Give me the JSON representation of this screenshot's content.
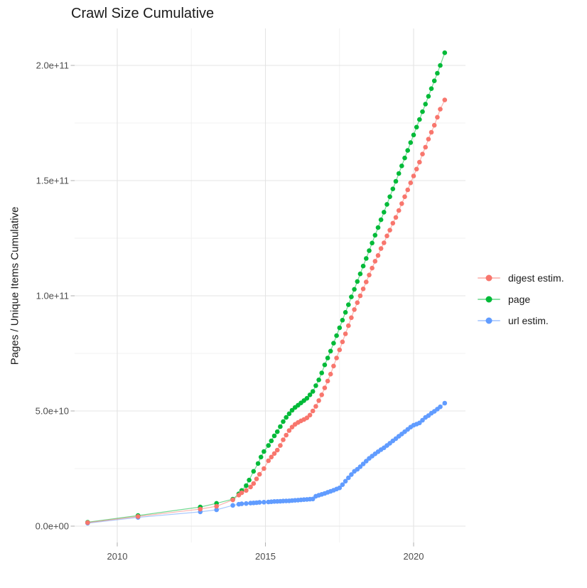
{
  "page": {
    "background": "#ffffff"
  },
  "colors": {
    "grid_major": "#e4e4e4",
    "grid_minor": "#f1f1f1",
    "axis_tick": "#b3b3b3",
    "tick_label": "#4d4d4d",
    "text": "#1a1a1a"
  },
  "chart_data": {
    "type": "line",
    "title": "Crawl Size Cumulative",
    "xlabel": "",
    "ylabel": "Pages / Unique Items Cumulative",
    "legend_position": "right",
    "grid": true,
    "point_style": "dots connected by thin lines",
    "x_ticks": [
      2010,
      2015,
      2020
    ],
    "x_tick_labels": [
      "2010",
      "2015",
      "2020"
    ],
    "x_minor_ticks": [
      2012.5,
      2017.5
    ],
    "xlim": [
      2008.56,
      2021.75
    ],
    "y_unit": "value_in_billions_1e9",
    "y_ticks_e9": [
      0,
      50,
      100,
      150,
      200
    ],
    "y_tick_labels": [
      "0.0e+00",
      "5.0e+10",
      "1.0e+11",
      "1.5e+11",
      "2.0e+11"
    ],
    "y_minor_ticks_e9": [
      25,
      75,
      125,
      175
    ],
    "ylim_e9": [
      -7,
      216
    ],
    "draw_order": [
      "url estim.",
      "page",
      "digest estim."
    ],
    "series": [
      {
        "name": "digest estim.",
        "color": "#F8766D",
        "points": [
          [
            2009.0,
            1.5
          ],
          [
            2010.7,
            4.2
          ],
          [
            2012.8,
            7.4
          ],
          [
            2013.35,
            8.6
          ],
          [
            2013.9,
            11.4
          ],
          [
            2014.1,
            13.5
          ],
          [
            2014.2,
            14.5
          ],
          [
            2014.35,
            15.5
          ],
          [
            2014.5,
            17.0
          ],
          [
            2014.6,
            18.5
          ],
          [
            2014.7,
            20.5
          ],
          [
            2014.8,
            22.5
          ],
          [
            2014.95,
            25.0
          ],
          [
            2015.1,
            28.4
          ],
          [
            2015.2,
            30.0
          ],
          [
            2015.3,
            31.5
          ],
          [
            2015.4,
            33.0
          ],
          [
            2015.5,
            35.0
          ],
          [
            2015.6,
            37.5
          ],
          [
            2015.7,
            39.5
          ],
          [
            2015.8,
            41.5
          ],
          [
            2015.9,
            43.0
          ],
          [
            2016.0,
            44.2
          ],
          [
            2016.1,
            45.0
          ],
          [
            2016.2,
            45.7
          ],
          [
            2016.3,
            46.3
          ],
          [
            2016.4,
            47.0
          ],
          [
            2016.5,
            48.2
          ],
          [
            2016.6,
            50.0
          ],
          [
            2016.7,
            52.0
          ],
          [
            2016.8,
            54.5
          ],
          [
            2016.9,
            57.0
          ],
          [
            2017.0,
            60.0
          ],
          [
            2017.1,
            63.0
          ],
          [
            2017.2,
            66.0
          ],
          [
            2017.3,
            69.5
          ],
          [
            2017.4,
            73.0
          ],
          [
            2017.5,
            76.5
          ],
          [
            2017.6,
            80.0
          ],
          [
            2017.7,
            83.5
          ],
          [
            2017.8,
            87.0
          ],
          [
            2017.9,
            90.5
          ],
          [
            2018.0,
            94.0
          ],
          [
            2018.1,
            97.0
          ],
          [
            2018.2,
            100.0
          ],
          [
            2018.3,
            103.0
          ],
          [
            2018.4,
            106.0
          ],
          [
            2018.5,
            109.0
          ],
          [
            2018.6,
            112.0
          ],
          [
            2018.7,
            115.0
          ],
          [
            2018.8,
            117.5
          ],
          [
            2018.9,
            120.5
          ],
          [
            2019.0,
            123.0
          ],
          [
            2019.1,
            126.0
          ],
          [
            2019.2,
            128.5
          ],
          [
            2019.3,
            131.5
          ],
          [
            2019.4,
            134.0
          ],
          [
            2019.5,
            137.0
          ],
          [
            2019.6,
            140.0
          ],
          [
            2019.7,
            143.0
          ],
          [
            2019.8,
            146.0
          ],
          [
            2019.9,
            149.0
          ],
          [
            2020.0,
            152.0
          ],
          [
            2020.1,
            155.0
          ],
          [
            2020.2,
            158.0
          ],
          [
            2020.3,
            161.5
          ],
          [
            2020.4,
            164.5
          ],
          [
            2020.5,
            168.0
          ],
          [
            2020.6,
            171.0
          ],
          [
            2020.7,
            174.0
          ],
          [
            2020.8,
            177.5
          ],
          [
            2020.9,
            181.0
          ],
          [
            2021.05,
            185.0
          ]
        ]
      },
      {
        "name": "page",
        "color": "#00BA38",
        "points": [
          [
            2009.0,
            1.7
          ],
          [
            2010.7,
            4.6
          ],
          [
            2012.8,
            8.3
          ],
          [
            2013.35,
            9.9
          ],
          [
            2013.9,
            11.7
          ],
          [
            2014.1,
            14.0
          ],
          [
            2014.2,
            15.5
          ],
          [
            2014.35,
            17.6
          ],
          [
            2014.45,
            20.0
          ],
          [
            2014.6,
            23.8
          ],
          [
            2014.75,
            27.2
          ],
          [
            2014.85,
            30.0
          ],
          [
            2014.95,
            32.4
          ],
          [
            2015.1,
            35.0
          ],
          [
            2015.2,
            37.0
          ],
          [
            2015.3,
            39.2
          ],
          [
            2015.4,
            41.0
          ],
          [
            2015.5,
            43.2
          ],
          [
            2015.6,
            45.4
          ],
          [
            2015.7,
            47.2
          ],
          [
            2015.8,
            48.8
          ],
          [
            2015.9,
            50.3
          ],
          [
            2016.0,
            51.5
          ],
          [
            2016.1,
            52.5
          ],
          [
            2016.2,
            53.5
          ],
          [
            2016.3,
            54.5
          ],
          [
            2016.4,
            55.5
          ],
          [
            2016.5,
            57.0
          ],
          [
            2016.6,
            58.5
          ],
          [
            2016.7,
            61.0
          ],
          [
            2016.8,
            63.5
          ],
          [
            2016.9,
            66.5
          ],
          [
            2017.0,
            70.0
          ],
          [
            2017.1,
            73.0
          ],
          [
            2017.2,
            76.0
          ],
          [
            2017.3,
            79.4
          ],
          [
            2017.4,
            82.7
          ],
          [
            2017.5,
            86.1
          ],
          [
            2017.6,
            89.4
          ],
          [
            2017.7,
            92.8
          ],
          [
            2017.8,
            96.1
          ],
          [
            2017.9,
            99.5
          ],
          [
            2018.0,
            102.8
          ],
          [
            2018.1,
            106.2
          ],
          [
            2018.2,
            109.5
          ],
          [
            2018.3,
            112.9
          ],
          [
            2018.4,
            116.2
          ],
          [
            2018.5,
            119.6
          ],
          [
            2018.6,
            122.9
          ],
          [
            2018.7,
            126.3
          ],
          [
            2018.8,
            129.6
          ],
          [
            2018.9,
            133.0
          ],
          [
            2019.0,
            136.3
          ],
          [
            2019.1,
            139.7
          ],
          [
            2019.2,
            143.0
          ],
          [
            2019.3,
            146.4
          ],
          [
            2019.4,
            149.7
          ],
          [
            2019.5,
            153.1
          ],
          [
            2019.6,
            156.4
          ],
          [
            2019.7,
            159.8
          ],
          [
            2019.8,
            163.1
          ],
          [
            2019.9,
            166.5
          ],
          [
            2020.0,
            169.8
          ],
          [
            2020.1,
            173.2
          ],
          [
            2020.2,
            176.5
          ],
          [
            2020.3,
            179.9
          ],
          [
            2020.4,
            183.2
          ],
          [
            2020.5,
            186.6
          ],
          [
            2020.6,
            189.9
          ],
          [
            2020.7,
            193.3
          ],
          [
            2020.8,
            196.6
          ],
          [
            2020.9,
            200.0
          ],
          [
            2021.05,
            205.5
          ]
        ]
      },
      {
        "name": "url estim.",
        "color": "#619CFF",
        "points": [
          [
            2009.0,
            1.3
          ],
          [
            2010.7,
            3.8
          ],
          [
            2012.8,
            6.2
          ],
          [
            2013.35,
            7.1
          ],
          [
            2013.9,
            9.0
          ],
          [
            2014.1,
            9.5
          ],
          [
            2014.2,
            9.7
          ],
          [
            2014.35,
            9.8
          ],
          [
            2014.5,
            10.0
          ],
          [
            2014.6,
            10.1
          ],
          [
            2014.7,
            10.2
          ],
          [
            2014.8,
            10.3
          ],
          [
            2014.95,
            10.4
          ],
          [
            2015.1,
            10.5
          ],
          [
            2015.2,
            10.6
          ],
          [
            2015.3,
            10.7
          ],
          [
            2015.4,
            10.75
          ],
          [
            2015.5,
            10.8
          ],
          [
            2015.6,
            10.9
          ],
          [
            2015.7,
            10.95
          ],
          [
            2015.8,
            11.0
          ],
          [
            2015.9,
            11.1
          ],
          [
            2016.0,
            11.2
          ],
          [
            2016.1,
            11.3
          ],
          [
            2016.2,
            11.4
          ],
          [
            2016.3,
            11.5
          ],
          [
            2016.4,
            11.6
          ],
          [
            2016.5,
            11.7
          ],
          [
            2016.6,
            11.8
          ],
          [
            2016.7,
            13.0
          ],
          [
            2016.8,
            13.4
          ],
          [
            2016.9,
            13.8
          ],
          [
            2017.0,
            14.2
          ],
          [
            2017.1,
            14.7
          ],
          [
            2017.2,
            15.1
          ],
          [
            2017.3,
            15.6
          ],
          [
            2017.4,
            16.1
          ],
          [
            2017.5,
            16.6
          ],
          [
            2017.6,
            18.0
          ],
          [
            2017.7,
            19.5
          ],
          [
            2017.8,
            21.0
          ],
          [
            2017.9,
            22.4
          ],
          [
            2018.0,
            23.8
          ],
          [
            2018.1,
            24.7
          ],
          [
            2018.2,
            25.8
          ],
          [
            2018.3,
            27.0
          ],
          [
            2018.4,
            28.2
          ],
          [
            2018.5,
            29.4
          ],
          [
            2018.6,
            30.4
          ],
          [
            2018.7,
            31.4
          ],
          [
            2018.8,
            32.3
          ],
          [
            2018.9,
            33.2
          ],
          [
            2019.0,
            34.0
          ],
          [
            2019.1,
            35.0
          ],
          [
            2019.2,
            36.0
          ],
          [
            2019.3,
            37.0
          ],
          [
            2019.4,
            38.0
          ],
          [
            2019.5,
            39.0
          ],
          [
            2019.6,
            40.0
          ],
          [
            2019.7,
            41.0
          ],
          [
            2019.8,
            42.0
          ],
          [
            2019.9,
            43.0
          ],
          [
            2020.0,
            43.8
          ],
          [
            2020.1,
            44.3
          ],
          [
            2020.2,
            44.8
          ],
          [
            2020.3,
            46.0
          ],
          [
            2020.4,
            47.2
          ],
          [
            2020.5,
            48.0
          ],
          [
            2020.6,
            49.0
          ],
          [
            2020.7,
            49.8
          ],
          [
            2020.8,
            50.8
          ],
          [
            2020.9,
            51.8
          ],
          [
            2021.05,
            53.4
          ]
        ]
      }
    ]
  }
}
